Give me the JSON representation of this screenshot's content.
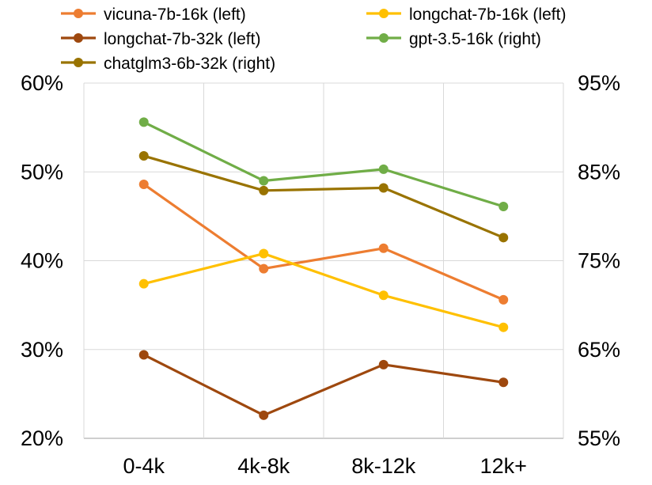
{
  "chart_data": {
    "type": "line",
    "categories": [
      "0-4k",
      "4k-8k",
      "8k-12k",
      "12k+"
    ],
    "y_left": {
      "range": [
        0.2,
        0.6
      ],
      "ticks": [
        0.2,
        0.3,
        0.4,
        0.5,
        0.6
      ],
      "tick_labels": [
        "20%",
        "30%",
        "40%",
        "50%",
        "60%"
      ]
    },
    "y_right": {
      "range": [
        0.55,
        0.95
      ],
      "ticks": [
        0.55,
        0.65,
        0.75,
        0.85,
        0.95
      ],
      "tick_labels": [
        "55%",
        "65%",
        "75%",
        "85%",
        "95%"
      ]
    },
    "grid": "vertical",
    "legend_position": "top",
    "series": [
      {
        "name": "vicuna-7b-16k (left)",
        "axis": "left",
        "color": "#ED7D31",
        "values": [
          0.486,
          0.391,
          0.414,
          0.356
        ]
      },
      {
        "name": "longchat-7b-16k (left)",
        "axis": "left",
        "color": "#FFC000",
        "values": [
          0.374,
          0.408,
          0.361,
          0.325
        ]
      },
      {
        "name": "longchat-7b-32k (left)",
        "axis": "left",
        "color": "#9E480E",
        "values": [
          0.294,
          0.226,
          0.283,
          0.263
        ]
      },
      {
        "name": "gpt-3.5-16k (right)",
        "axis": "right",
        "color": "#70AD47",
        "values": [
          0.906,
          0.84,
          0.853,
          0.811
        ]
      },
      {
        "name": "chatglm3-6b-32k  (right)",
        "axis": "right",
        "color": "#997300",
        "values": [
          0.868,
          0.829,
          0.832,
          0.776
        ]
      }
    ]
  }
}
